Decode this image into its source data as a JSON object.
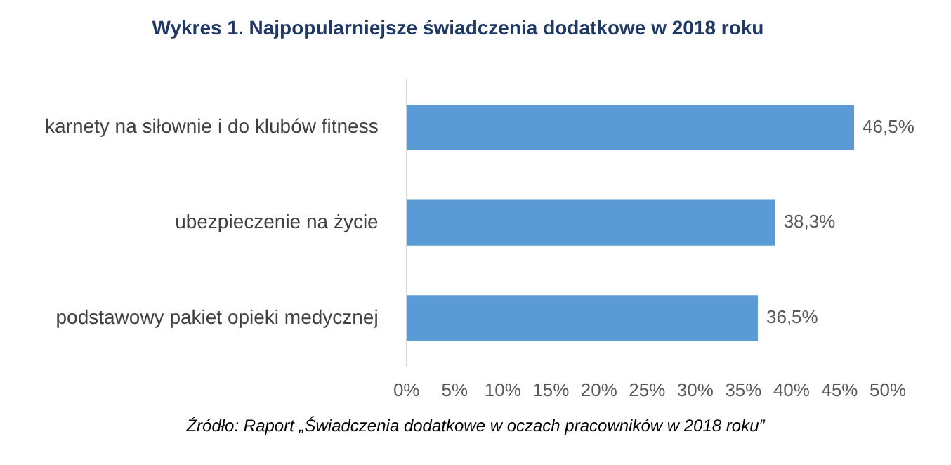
{
  "chart_data": {
    "type": "bar",
    "orientation": "horizontal",
    "title": "Wykres 1. Najpopularniejsze świadczenia dodatkowe w 2018 roku",
    "categories": [
      "karnety na siłownie i do klubów fitness",
      "ubezpieczenie na życie",
      "podstawowy pakiet opieki medycznej"
    ],
    "values": [
      46.5,
      38.3,
      36.5
    ],
    "color": "#5b9bd5",
    "value_labels": [
      "46,5%",
      "38,3%",
      "36,5%"
    ],
    "xlim": [
      0,
      50
    ],
    "xticks": [
      {
        "value": 0,
        "label": "0%"
      },
      {
        "value": 5,
        "label": "5%"
      },
      {
        "value": 10,
        "label": "10%"
      },
      {
        "value": 15,
        "label": "15%"
      },
      {
        "value": 20,
        "label": "20%"
      },
      {
        "value": 25,
        "label": "25%"
      },
      {
        "value": 30,
        "label": "30%"
      },
      {
        "value": 35,
        "label": "35%"
      },
      {
        "value": 40,
        "label": "40%"
      },
      {
        "value": 45,
        "label": "45%"
      },
      {
        "value": 50,
        "label": "50%"
      }
    ],
    "grid": false,
    "legend": false,
    "annotations": [
      "Źródło: Raport „Świadczenia dodatkowe w oczach pracowników w 2018 roku”"
    ]
  }
}
